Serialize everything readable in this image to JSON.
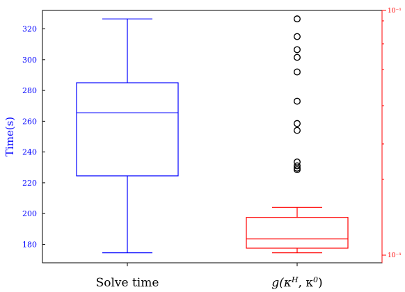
{
  "chart_data": {
    "type": "box",
    "categories": [
      "Solve time",
      "g(κ^H, κ^0)"
    ],
    "left_axis": {
      "label": "Time(s)",
      "color": "#0000ff",
      "ylim": [
        168,
        332
      ],
      "ticks": [
        180,
        200,
        220,
        240,
        260,
        280,
        300,
        320
      ]
    },
    "right_axis": {
      "color": "#ff0000",
      "scale": "log",
      "tick_labels": [
        "10⁻¹",
        "10⁻¹"
      ]
    },
    "series": [
      {
        "axis": "left",
        "color": "#0000ff",
        "whisker_low": 174.5,
        "q1": 224.5,
        "median": 265.5,
        "q3": 285,
        "whisker_high": 326.5,
        "outliers": []
      },
      {
        "axis": "right",
        "color": "#ff0000",
        "outlier_color": "#000000",
        "whisker_low": 174.5,
        "q1": 177.5,
        "median": 183.5,
        "q3": 197.5,
        "whisker_high": 204,
        "outliers": [
          326.5,
          315,
          306.5,
          301.5,
          292,
          273,
          258.5,
          254,
          233.5,
          231,
          229.5,
          228.5
        ]
      }
    ]
  }
}
